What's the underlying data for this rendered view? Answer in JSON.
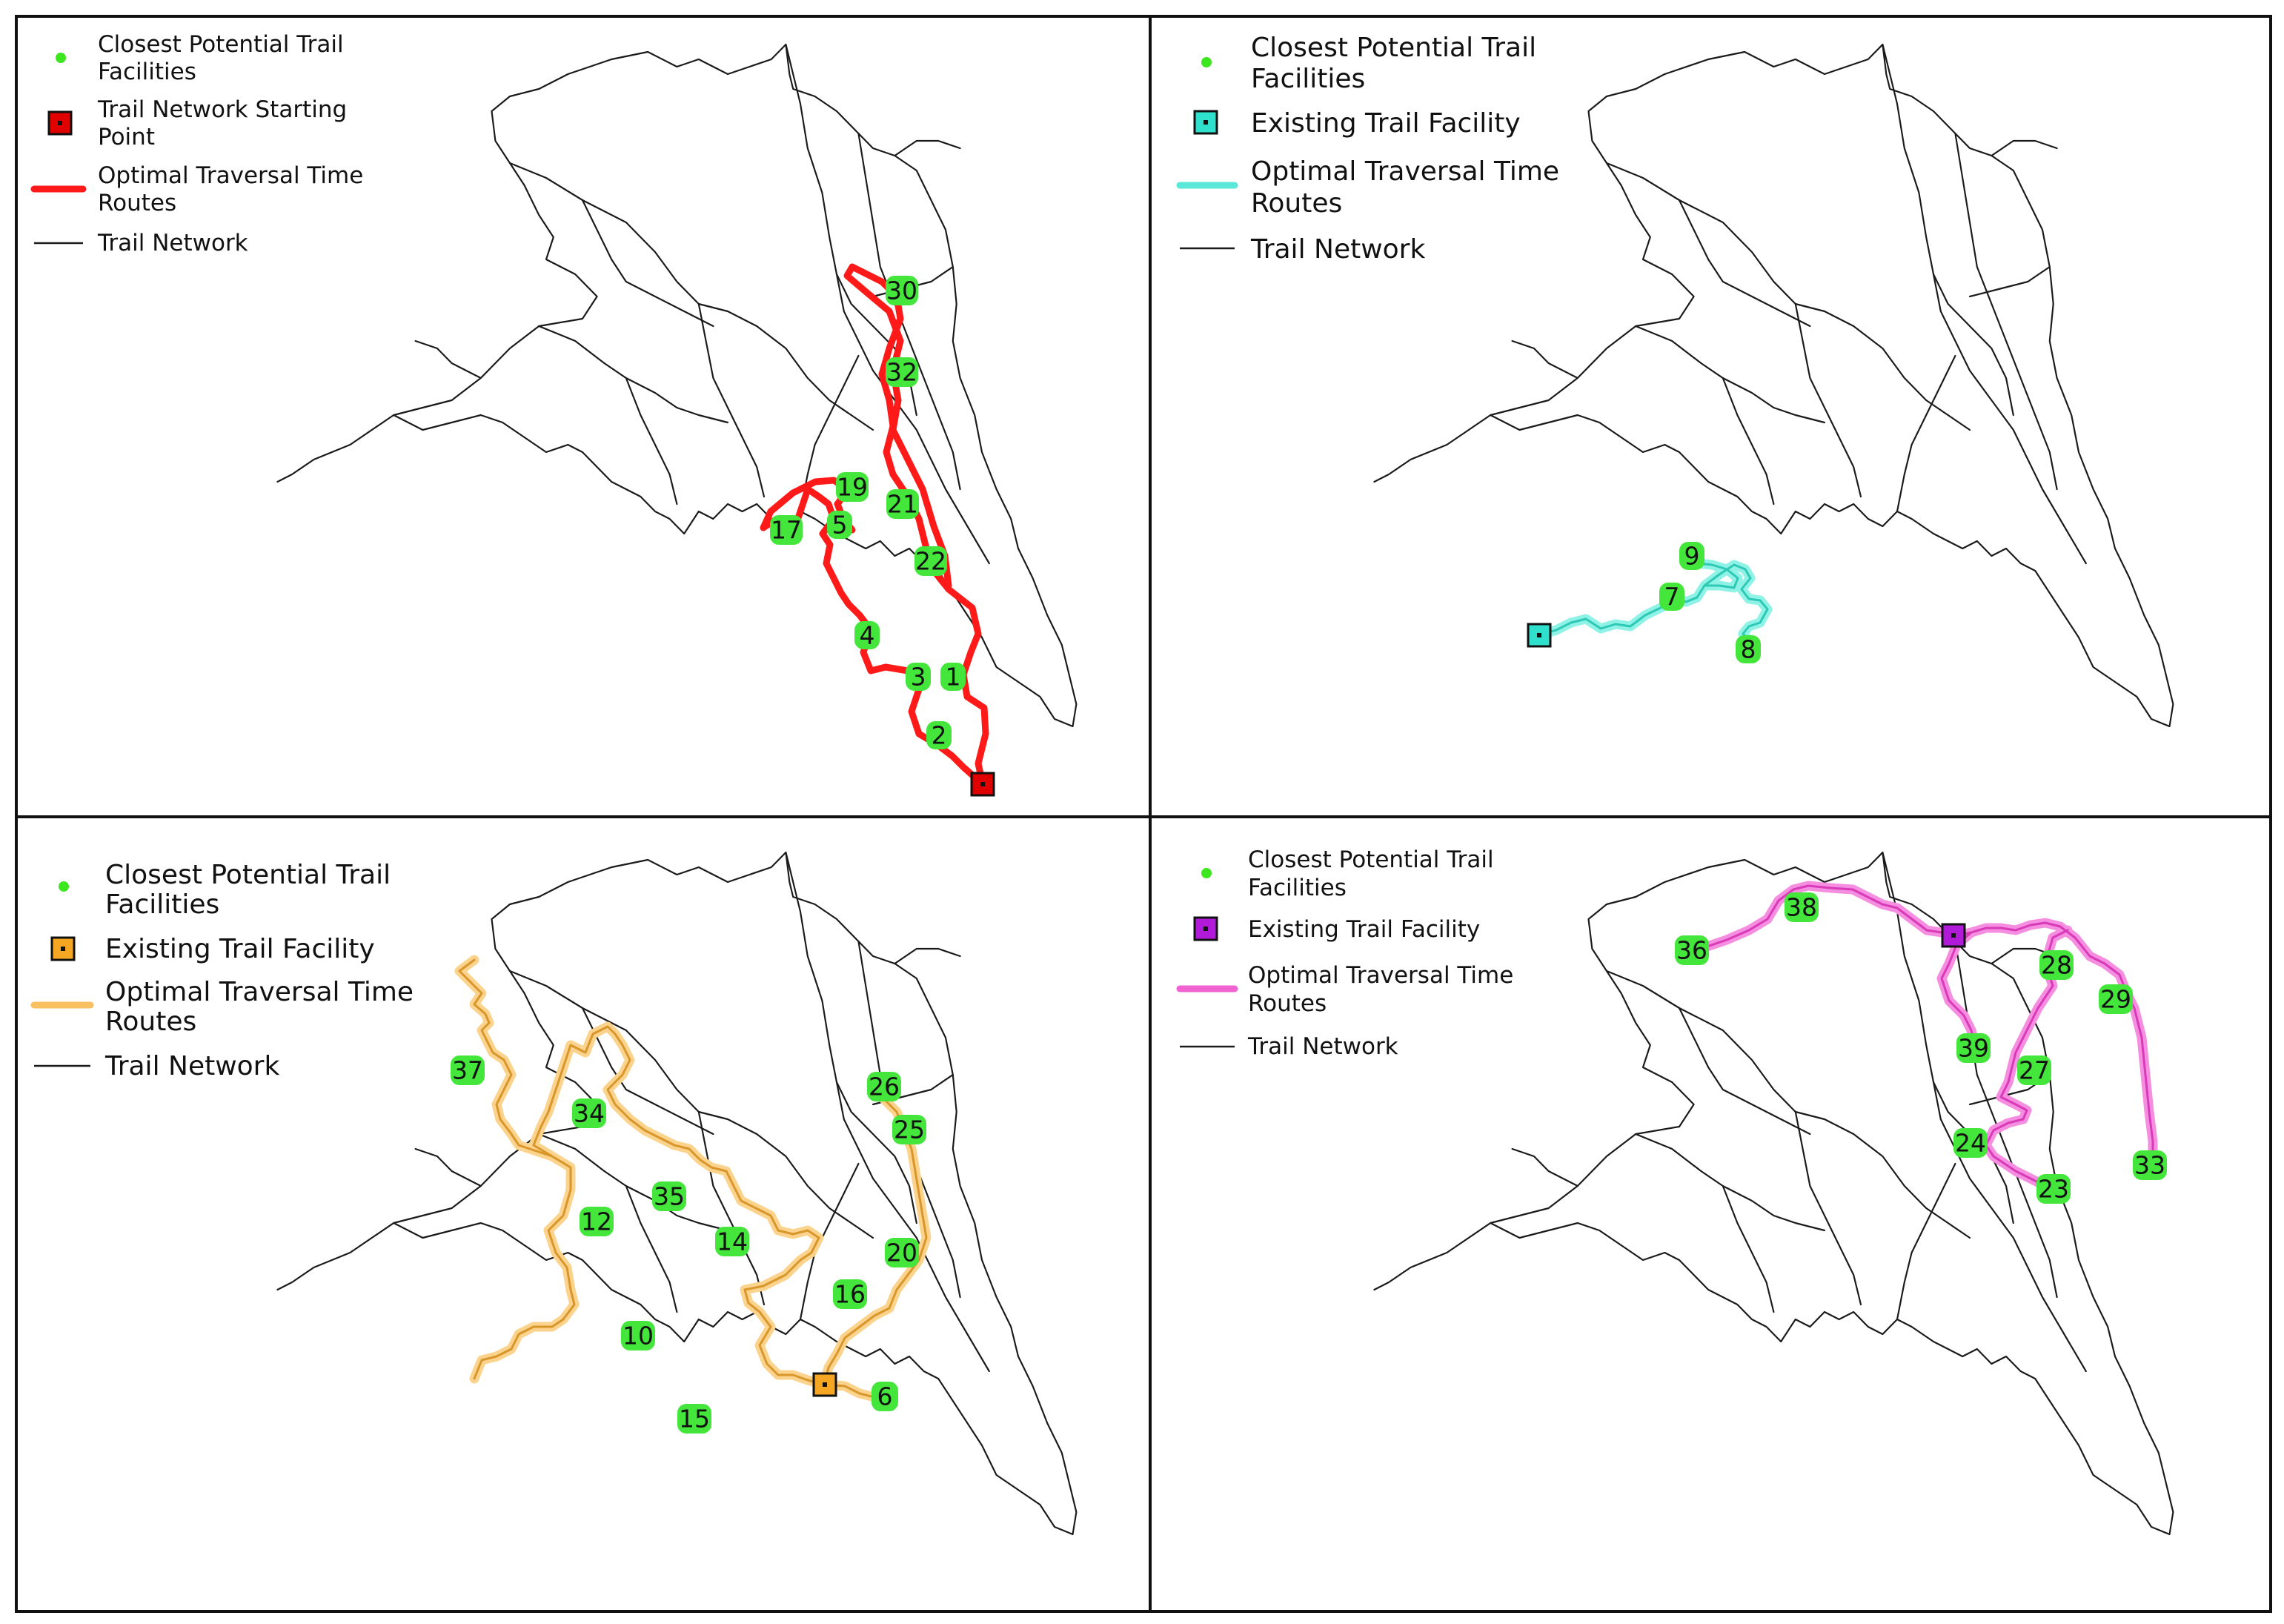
{
  "figure": {
    "panels": [
      {
        "id": "top-left",
        "legend": [
          {
            "kind": "facility-dot",
            "label": [
              "Closest Potential Trail",
              "Facilities"
            ]
          },
          {
            "kind": "start-square",
            "label": [
              "Trail Network Starting",
              "Point"
            ],
            "color": "#e00000"
          },
          {
            "kind": "route-line",
            "label": [
              "Optimal Traversal Time",
              "Routes"
            ],
            "color": "#ff1a1a"
          },
          {
            "kind": "trail-line",
            "label": [
              "Trail Network"
            ]
          }
        ],
        "route_color": "#ff1a1a",
        "route_halo": "#ff1a1a",
        "marker_fill": "#e00000",
        "facility_labels": [
          "30",
          "32",
          "19",
          "21",
          "17",
          "5",
          "22",
          "4",
          "3",
          "1",
          "2"
        ]
      },
      {
        "id": "top-right",
        "legend": [
          {
            "kind": "facility-dot",
            "label": [
              "Closest Potential Trail",
              "Facilities"
            ]
          },
          {
            "kind": "start-square",
            "label": [
              "Existing Trail Facility"
            ],
            "color": "#2fe0cc"
          },
          {
            "kind": "route-line",
            "label": [
              "Optimal Traversal Time",
              "Routes"
            ],
            "color": "#5ce8d8"
          },
          {
            "kind": "trail-line",
            "label": [
              "Trail Network"
            ]
          }
        ],
        "route_color": "#2ec9b5",
        "route_halo": "#8ff2e6",
        "marker_fill": "#2fe0cc",
        "facility_labels": [
          "9",
          "7",
          "8"
        ]
      },
      {
        "id": "bottom-left",
        "legend": [
          {
            "kind": "facility-dot",
            "label": [
              "Closest Potential Trail",
              "Facilities"
            ]
          },
          {
            "kind": "start-square",
            "label": [
              "Existing Trail Facility"
            ],
            "color": "#f5a623"
          },
          {
            "kind": "route-line",
            "label": [
              "Optimal Traversal Time",
              "Routes"
            ],
            "color": "#f8c060"
          },
          {
            "kind": "trail-line",
            "label": [
              "Trail Network"
            ]
          }
        ],
        "route_color": "#d9962a",
        "route_halo": "#fbd38d",
        "marker_fill": "#f5a623",
        "facility_labels": [
          "37",
          "34",
          "35",
          "12",
          "14",
          "26",
          "25",
          "20",
          "16",
          "10",
          "15",
          "6"
        ]
      },
      {
        "id": "bottom-right",
        "legend": [
          {
            "kind": "facility-dot",
            "label": [
              "Closest Potential Trail",
              "Facilities"
            ]
          },
          {
            "kind": "start-square",
            "label": [
              "Existing Trail Facility"
            ],
            "color": "#b01ad8"
          },
          {
            "kind": "route-line",
            "label": [
              "Optimal Traversal Time",
              "Routes"
            ],
            "color": "#f063d0"
          },
          {
            "kind": "trail-line",
            "label": [
              "Trail Network"
            ]
          }
        ],
        "route_color": "#d83ab8",
        "route_halo": "#f58ee0",
        "marker_fill": "#b01ad8",
        "facility_labels": [
          "36",
          "38",
          "28",
          "29",
          "39",
          "27",
          "24",
          "23",
          "33"
        ]
      }
    ],
    "colors": {
      "facility_green": "#44e63c",
      "facility_dot": "#3ee620",
      "trail": "#1a1a1a",
      "border": "#111111"
    }
  }
}
